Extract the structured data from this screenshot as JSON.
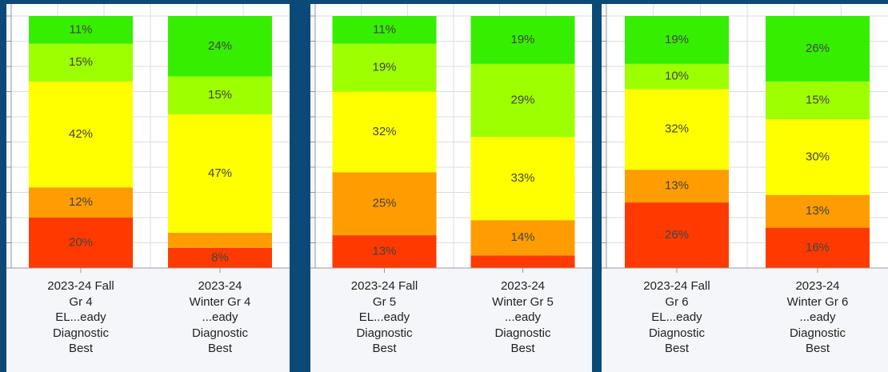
{
  "chart_data": [
    {
      "type": "bar",
      "stacked": true,
      "categories": [
        "2023-24 Fall\nGr 4\nEL...eady\nDiagnostic\nBest",
        "2023-24\nWinter Gr 4\n...eady\nDiagnostic\nBest"
      ],
      "series": [
        {
          "color": "#ff3a00",
          "values": [
            20,
            8
          ],
          "value_labels": [
            "20%",
            "8%"
          ]
        },
        {
          "color": "#ff9c00",
          "values": [
            12,
            6
          ],
          "value_labels": [
            "12%",
            null
          ]
        },
        {
          "color": "#ffff00",
          "values": [
            42,
            47
          ],
          "value_labels": [
            "42%",
            "47%"
          ]
        },
        {
          "color": "#9dff00",
          "values": [
            15,
            15
          ],
          "value_labels": [
            "15%",
            "15%"
          ]
        },
        {
          "color": "#36ee00",
          "values": [
            11,
            24
          ],
          "value_labels": [
            "11%",
            "24%"
          ]
        }
      ],
      "ylim": [
        0,
        100
      ],
      "yticks": [
        0,
        10,
        20,
        30,
        40,
        50,
        60,
        70,
        80,
        90,
        100
      ],
      "grid": true
    },
    {
      "type": "bar",
      "stacked": true,
      "categories": [
        "2023-24 Fall\nGr 5\nEL...eady\nDiagnostic\nBest",
        "2023-24\nWinter Gr 5\n...eady\nDiagnostic\nBest"
      ],
      "series": [
        {
          "color": "#ff3a00",
          "values": [
            13,
            5
          ],
          "value_labels": [
            "13%",
            null
          ]
        },
        {
          "color": "#ff9c00",
          "values": [
            25,
            14
          ],
          "value_labels": [
            "25%",
            "14%"
          ]
        },
        {
          "color": "#ffff00",
          "values": [
            32,
            33
          ],
          "value_labels": [
            "32%",
            "33%"
          ]
        },
        {
          "color": "#9dff00",
          "values": [
            19,
            29
          ],
          "value_labels": [
            "19%",
            "29%"
          ]
        },
        {
          "color": "#36ee00",
          "values": [
            11,
            19
          ],
          "value_labels": [
            "11%",
            "19%"
          ]
        }
      ],
      "ylim": [
        0,
        100
      ],
      "yticks": [
        0,
        10,
        20,
        30,
        40,
        50,
        60,
        70,
        80,
        90,
        100
      ],
      "grid": true
    },
    {
      "type": "bar",
      "stacked": true,
      "categories": [
        "2023-24 Fall\nGr 6\nEL...eady\nDiagnostic\nBest",
        "2023-24\nWinter Gr 6\n...eady\nDiagnostic\nBest"
      ],
      "series": [
        {
          "color": "#ff3a00",
          "values": [
            26,
            16
          ],
          "value_labels": [
            "26%",
            "16%"
          ]
        },
        {
          "color": "#ff9c00",
          "values": [
            13,
            13
          ],
          "value_labels": [
            "13%",
            "13%"
          ]
        },
        {
          "color": "#ffff00",
          "values": [
            32,
            30
          ],
          "value_labels": [
            "32%",
            "30%"
          ]
        },
        {
          "color": "#9dff00",
          "values": [
            10,
            15
          ],
          "value_labels": [
            "10%",
            "15%"
          ]
        },
        {
          "color": "#36ee00",
          "values": [
            19,
            26
          ],
          "value_labels": [
            "19%",
            "26%"
          ]
        }
      ],
      "ylim": [
        0,
        100
      ],
      "yticks": [
        0,
        10,
        20,
        30,
        40,
        50,
        60,
        70,
        80,
        90,
        100
      ],
      "grid": true
    }
  ]
}
